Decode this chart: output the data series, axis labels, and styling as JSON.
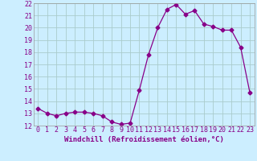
{
  "x": [
    0,
    1,
    2,
    3,
    4,
    5,
    6,
    7,
    8,
    9,
    10,
    11,
    12,
    13,
    14,
    15,
    16,
    17,
    18,
    19,
    20,
    21,
    22,
    23
  ],
  "y": [
    13.4,
    13.0,
    12.8,
    13.0,
    13.1,
    13.1,
    13.0,
    12.8,
    12.3,
    12.1,
    12.2,
    14.9,
    17.8,
    20.0,
    21.5,
    21.9,
    21.1,
    21.4,
    20.3,
    20.1,
    19.8,
    19.8,
    18.4,
    14.7
  ],
  "line_color": "#880088",
  "marker": "D",
  "marker_size": 2.5,
  "bg_color": "#cceeff",
  "grid_color": "#aacccc",
  "xlabel": "Windchill (Refroidissement éolien,°C)",
  "ylim": [
    12,
    22
  ],
  "xlim": [
    -0.5,
    23.5
  ],
  "yticks": [
    12,
    13,
    14,
    15,
    16,
    17,
    18,
    19,
    20,
    21,
    22
  ],
  "xticks": [
    0,
    1,
    2,
    3,
    4,
    5,
    6,
    7,
    8,
    9,
    10,
    11,
    12,
    13,
    14,
    15,
    16,
    17,
    18,
    19,
    20,
    21,
    22,
    23
  ],
  "tick_fontsize": 6.0,
  "xlabel_fontsize": 6.5
}
